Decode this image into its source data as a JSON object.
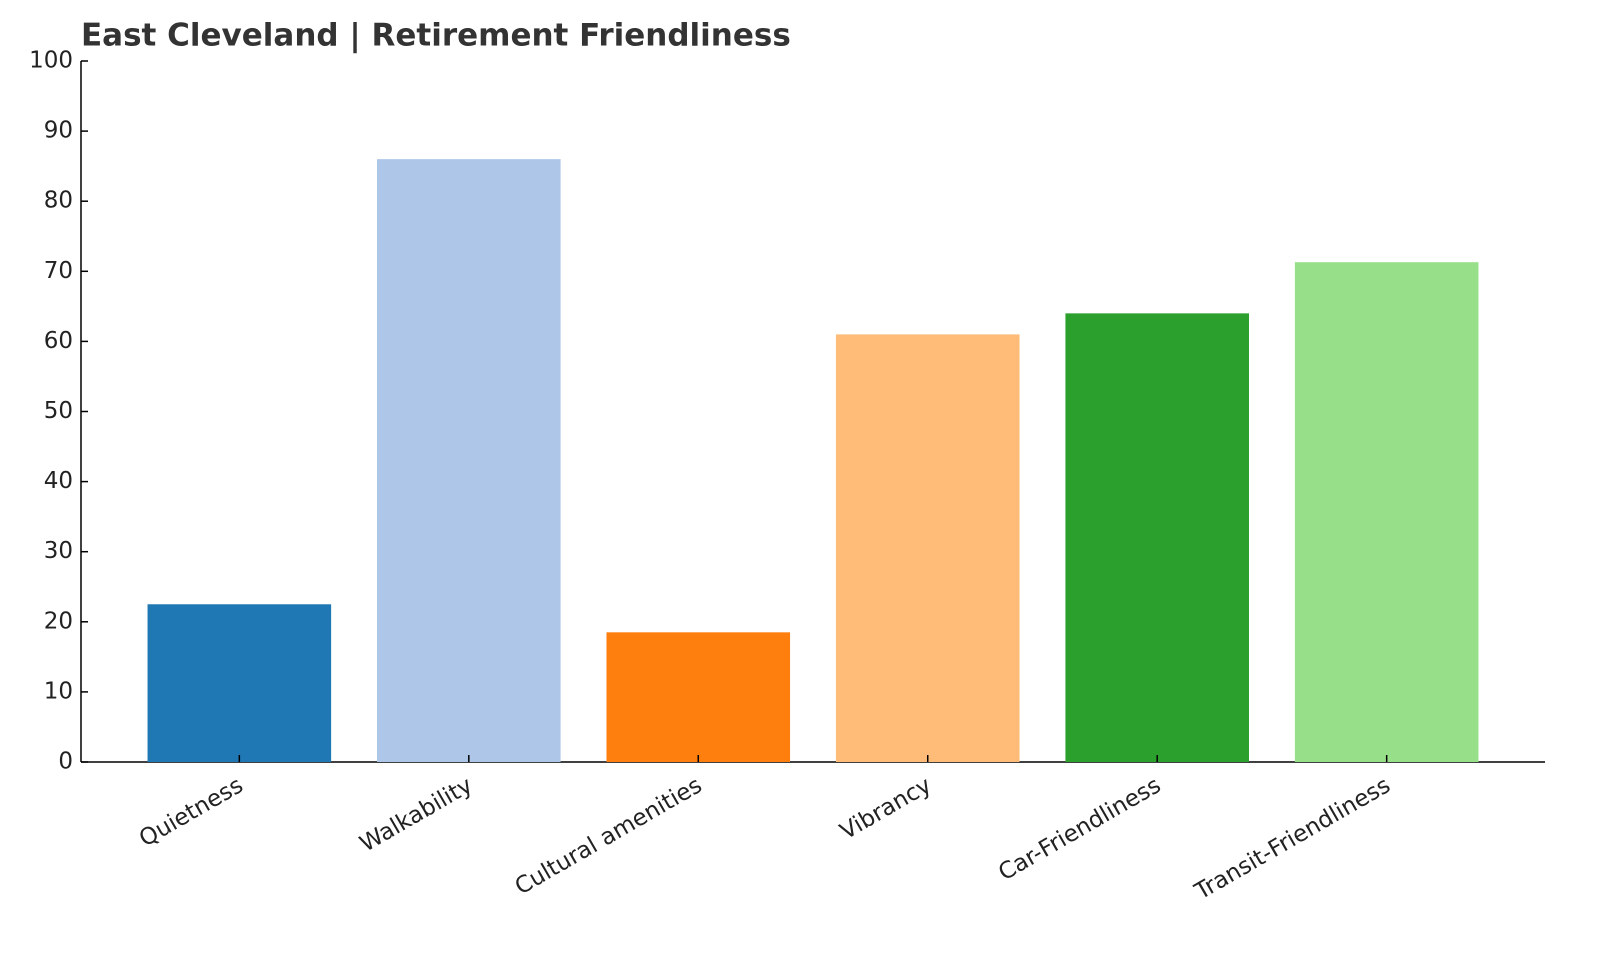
{
  "chart_data": {
    "type": "bar",
    "title": "East Cleveland | Retirement Friendliness",
    "categories": [
      "Quietness",
      "Walkability",
      "Cultural amenities",
      "Vibrancy",
      "Car-Friendliness",
      "Transit-Friendliness"
    ],
    "values": [
      22.5,
      86,
      18.5,
      61,
      64,
      71.3
    ],
    "colors": [
      "#1f77b4",
      "#aec7e8",
      "#ff7f0e",
      "#ffbb78",
      "#2ca02c",
      "#98df8a"
    ],
    "ylim": [
      0,
      100
    ],
    "yticks": [
      0,
      10,
      20,
      30,
      40,
      50,
      60,
      70,
      80,
      90,
      100
    ],
    "grid": false
  }
}
